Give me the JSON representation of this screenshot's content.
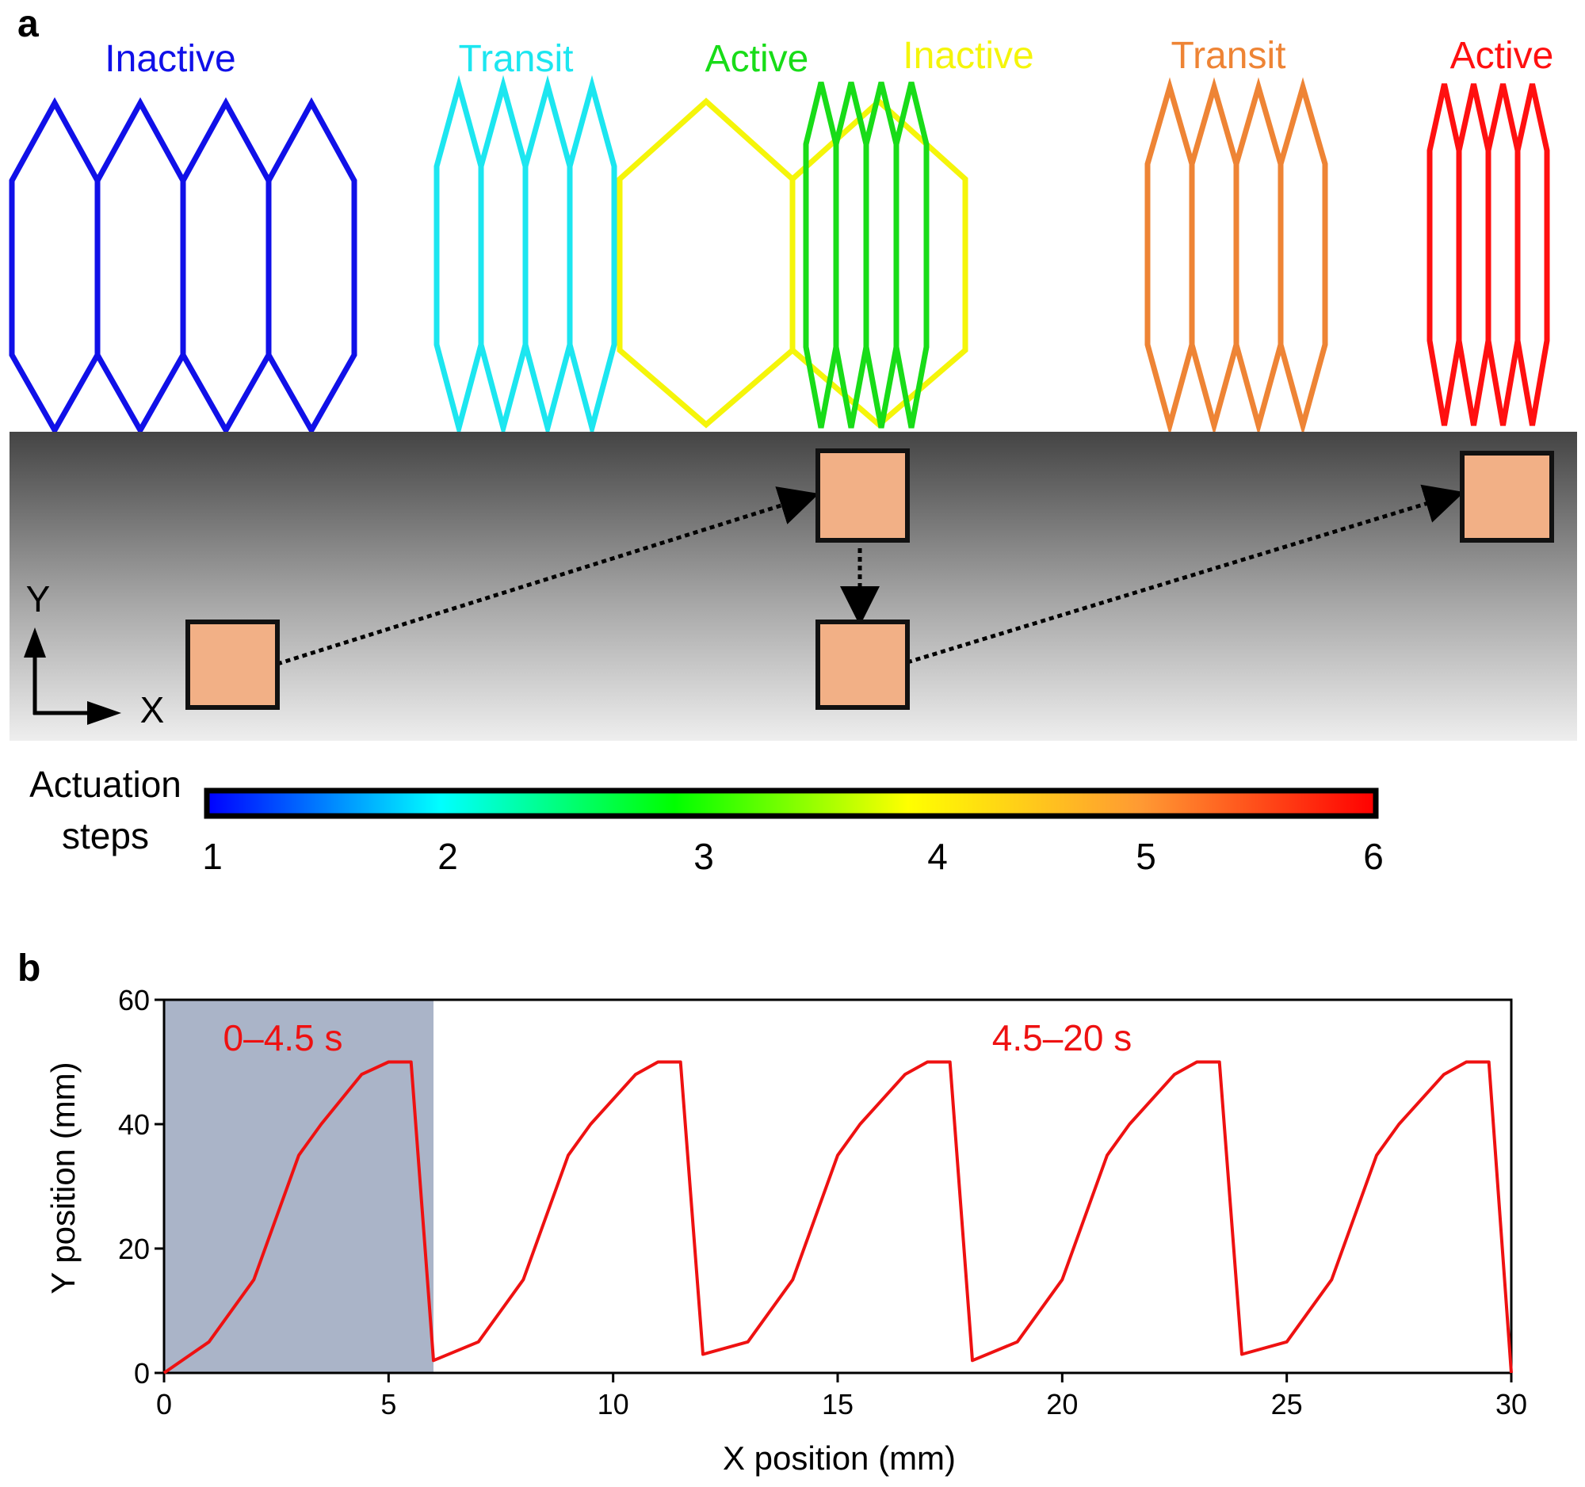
{
  "panel_a": {
    "label": "a",
    "states": [
      {
        "text": "Inactive",
        "color": "#1010e8",
        "step": 1
      },
      {
        "text": "Transit",
        "color": "#1ce6f0",
        "step": 2
      },
      {
        "text": "Active",
        "color": "#18dc18",
        "step": 3
      },
      {
        "text": "Inactive",
        "color": "#f5f50a",
        "step": 4
      },
      {
        "text": "Transit",
        "color": "#ee8435",
        "step": 5
      },
      {
        "text": "Active",
        "color": "#ff1010",
        "step": 6
      }
    ],
    "axis_labels": {
      "y": "Y",
      "x": "X"
    },
    "colorbar": {
      "label_line1": "Actuation",
      "label_line2": "steps",
      "ticks": [
        "1",
        "2",
        "3",
        "4",
        "5",
        "6"
      ],
      "colors": [
        "#0000ff",
        "#00ffff",
        "#00ff00",
        "#ffff00",
        "#ff9933",
        "#ff0000"
      ]
    },
    "block_color": "#f2b086"
  },
  "panel_b": {
    "label": "b",
    "annotations": [
      "0–4.5 s",
      "4.5–20 s"
    ],
    "shaded_x_range": [
      0,
      6
    ],
    "shade_color": "#aab4c8",
    "line_color": "#ee1111"
  },
  "chart_data": {
    "type": "line",
    "xlabel": "X position (mm)",
    "ylabel": "Y position (mm)",
    "xlim": [
      0,
      30
    ],
    "ylim": [
      0,
      60
    ],
    "xticks": [
      0,
      5,
      10,
      15,
      20,
      25,
      30
    ],
    "yticks": [
      0,
      20,
      40,
      60
    ],
    "grid": false,
    "series": [
      {
        "x": [
          0,
          1,
          2,
          3,
          3.5,
          4.4,
          5,
          5.5,
          6,
          7,
          8,
          9,
          9.5,
          10.5,
          11,
          11.5,
          12,
          13,
          14,
          15,
          15.5,
          16.5,
          17,
          17.5,
          18,
          19,
          20,
          21,
          21.5,
          22.5,
          23,
          23.5,
          24,
          25,
          26,
          27,
          27.5,
          28.5,
          29,
          29.5,
          30
        ],
        "y": [
          0,
          5,
          15,
          35,
          40,
          48,
          50,
          50,
          2,
          5,
          15,
          35,
          40,
          48,
          50,
          50,
          3,
          5,
          15,
          35,
          40,
          48,
          50,
          50,
          2,
          5,
          15,
          35,
          40,
          48,
          50,
          50,
          3,
          5,
          15,
          35,
          40,
          48,
          50,
          50,
          0
        ]
      }
    ]
  }
}
